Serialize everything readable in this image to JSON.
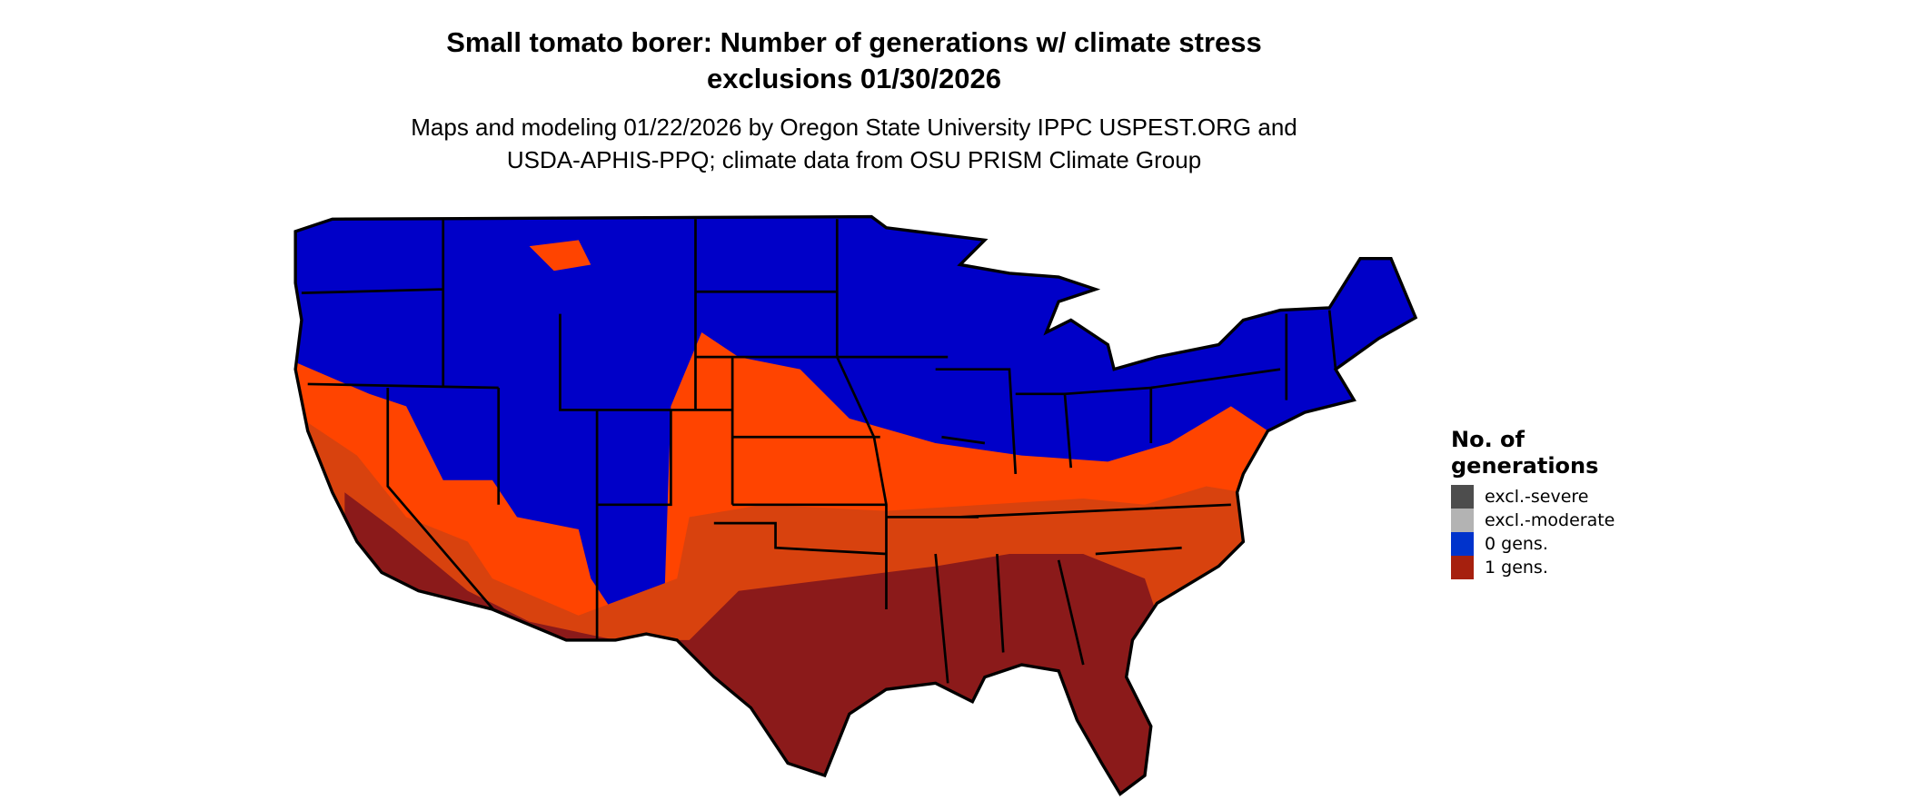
{
  "title": {
    "line1": "Small tomato borer: Number of generations w/ climate stress",
    "line2": "exclusions 01/30/2026"
  },
  "subtitle": {
    "line1": "Maps and modeling 01/22/2026 by Oregon State University IPPC USPEST.ORG and",
    "line2": "USDA-APHIS-PPQ; climate data from OSU PRISM Climate Group"
  },
  "chart_data": {
    "type": "heatmap",
    "title": "Small tomato borer: Number of generations w/ climate stress exclusions 01/30/2026",
    "region": "Contiguous United States",
    "legend_placement": "right",
    "legend": {
      "title_line1": "No. of",
      "title_line2": "generations",
      "items": [
        {
          "label": "excl.-severe",
          "color": "#4d4d4d"
        },
        {
          "label": "excl.-moderate",
          "color": "#b3b3b3"
        },
        {
          "label": "0 gens.",
          "color": "#0033cc"
        },
        {
          "label": "1 gens.",
          "color": "#a6200e"
        }
      ]
    },
    "map_colors": {
      "zero_gens": "#0000c8",
      "one_gen_low": "#ff4400",
      "one_gen_mid": "#d8420e",
      "one_gen_high": "#8b1a1a",
      "borders": "#000000"
    }
  }
}
